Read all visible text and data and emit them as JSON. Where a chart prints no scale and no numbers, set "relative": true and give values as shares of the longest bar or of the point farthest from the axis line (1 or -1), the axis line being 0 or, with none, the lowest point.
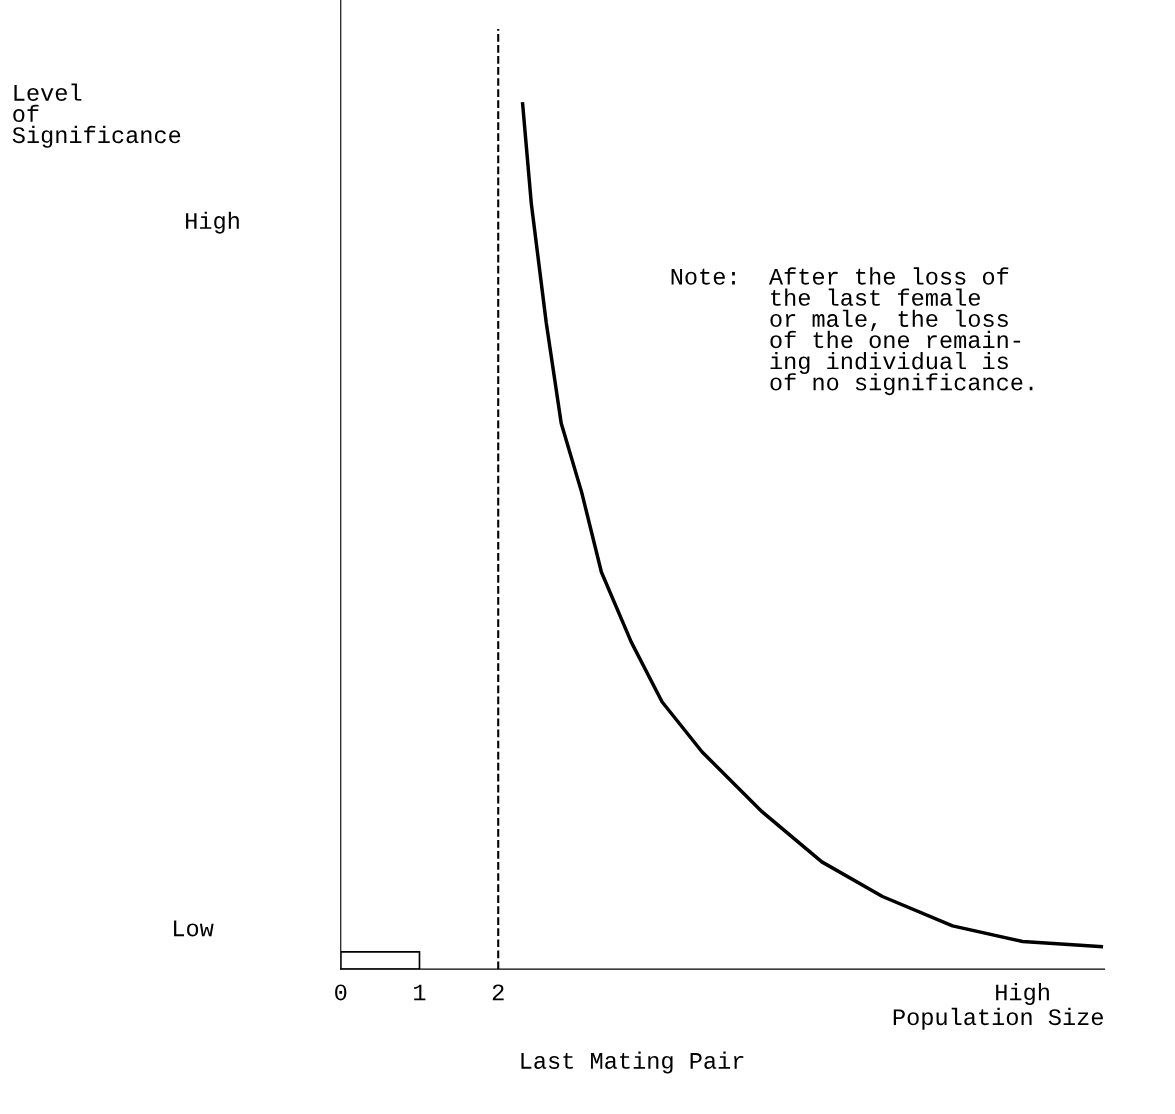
{
  "chart_data": {
    "type": "line",
    "relative": true,
    "xlabel": "Population Size",
    "xlim": [
      0,
      9.7
    ],
    "xticks": [
      0,
      1,
      2,
      {
        "value": 8.66,
        "label": "High"
      }
    ],
    "series": [
      {
        "color": "#000000",
        "x": [
          2.31,
          2.42,
          2.61,
          2.8,
          3.06,
          3.31,
          3.69,
          4.08,
          4.59,
          5.35,
          6.11,
          6.88,
          7.77,
          8.66,
          9.66
        ],
        "values": [
          1.0,
          0.885,
          0.747,
          0.631,
          0.551,
          0.459,
          0.378,
          0.309,
          0.251,
          0.182,
          0.124,
          0.084,
          0.05,
          0.032,
          0.026
        ]
      },
      {
        "type": "bar",
        "color": "#ffffff",
        "x": [
          0.5
        ],
        "values": [
          0.02
        ]
      }
    ],
    "ref_lines": [
      {
        "axis": "x",
        "value": 2,
        "label": "Last Mating Pair",
        "color": "#000000",
        "line_style": "dashed"
      }
    ],
    "annotations": [
      "Level\nof\nSignificance",
      "High",
      "Low",
      "Note:  After the loss of\n       the last female\n       or male, the loss\n       of the one remain-\n       ing individual is\n       of no significance."
    ],
    "grid": false,
    "legend": false
  }
}
